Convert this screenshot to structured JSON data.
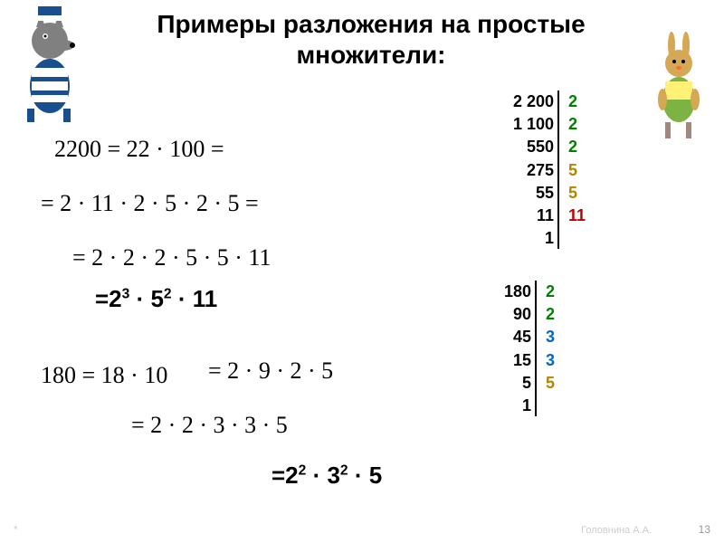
{
  "title": "Примеры разложения на простые множители:",
  "eq1": "2200 = 22 · 100 =",
  "eq2": "= 2 · 11 · 2 · 5 · 2 · 5 =",
  "eq3": "= 2 · 2 · 2 · 5 · 5 · 11",
  "result1_prefix": "=2",
  "result1_sup1": "3",
  "result1_mid": " · 5",
  "result1_sup2": "2",
  "result1_suffix": " · 11",
  "eq4": "180 = 18 · 10",
  "eq5": "= 2 · 9 · 2 · 5",
  "eq6": "= 2 · 2 · 3 · 3 · 5",
  "result2_prefix": "=2",
  "result2_sup1": "2",
  "result2_mid": " · 3",
  "result2_sup2": "2",
  "result2_suffix": " · 5",
  "fact1": {
    "left": [
      "2 200",
      "1 100",
      "550",
      "275",
      "55",
      "11",
      "1"
    ],
    "right": [
      "2",
      "2",
      "2",
      "5",
      "5",
      "11",
      ""
    ],
    "right_colors": [
      "#008000",
      "#008000",
      "#008000",
      "#b38600",
      "#b38600",
      "#c00000",
      "#000"
    ]
  },
  "fact2": {
    "left": [
      "180",
      "90",
      "45",
      "15",
      "5",
      "1"
    ],
    "right": [
      "2",
      "2",
      "3",
      "3",
      "5",
      ""
    ],
    "right_colors": [
      "#008000",
      "#008000",
      "#0066cc",
      "#0066cc",
      "#b38600",
      "#000"
    ]
  },
  "footer_author": "Головнина А.А.",
  "footer_page": "13",
  "footer_star": "*"
}
